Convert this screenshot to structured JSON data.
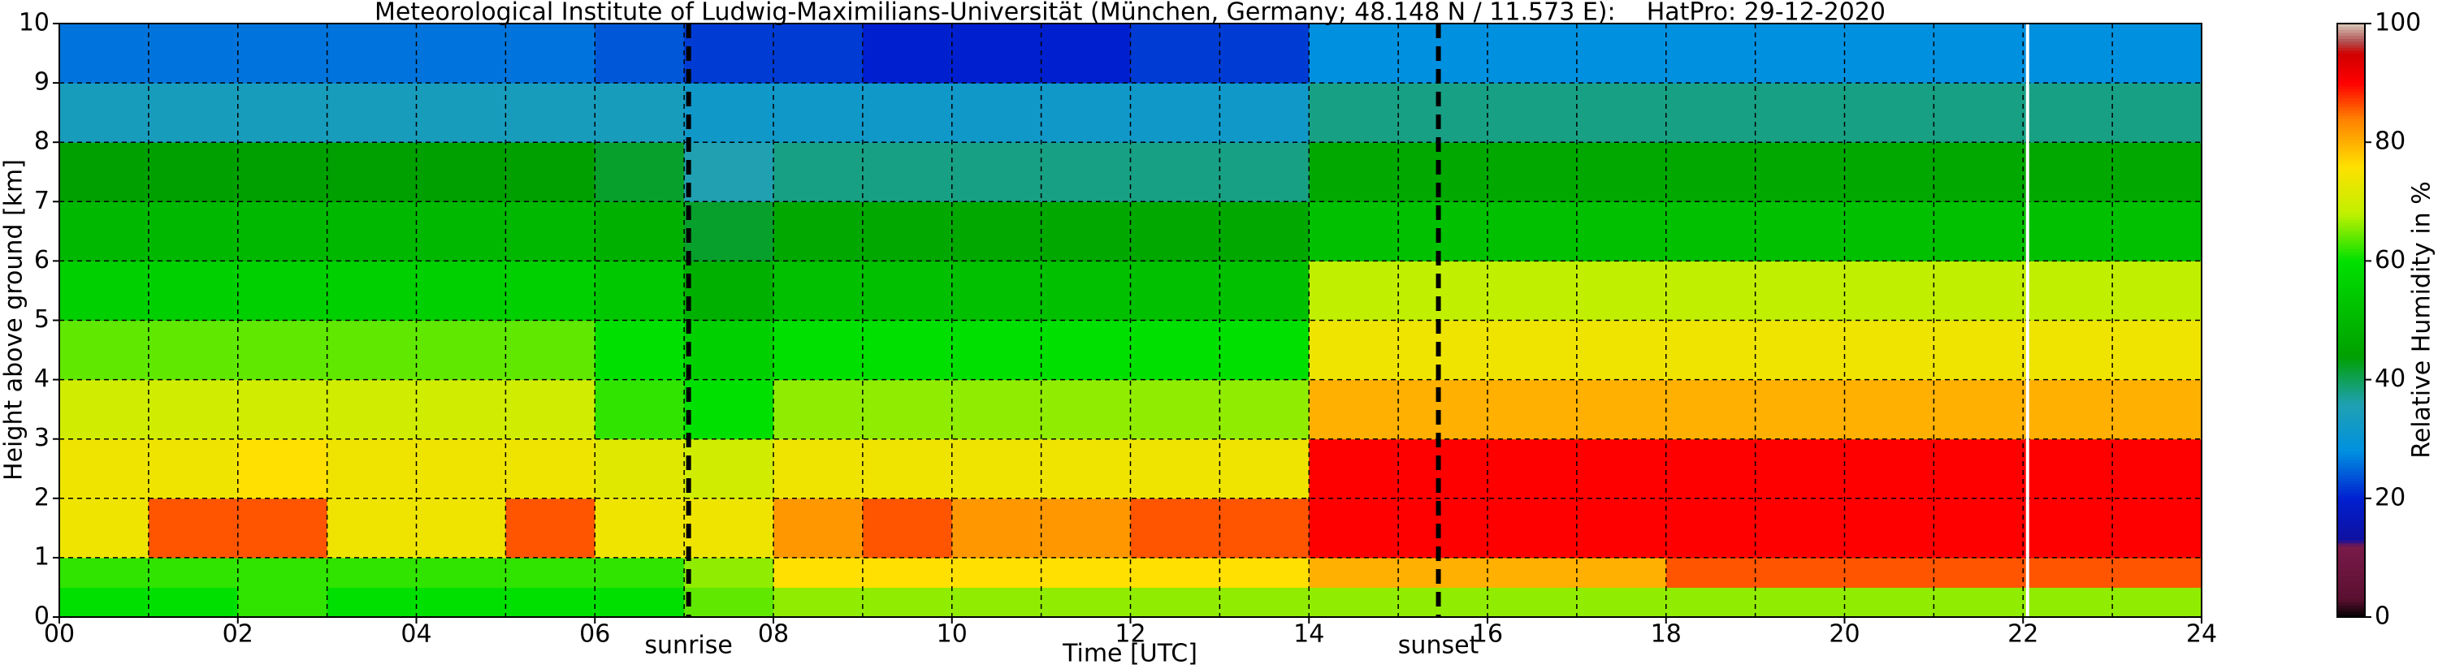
{
  "chart_data": {
    "type": "heatmap",
    "title": "Meteorological Institute of Ludwig-Maximilians-Universität (München, Germany; 48.148 N / 11.573 E):    HatPro: 29-12-2020",
    "xlabel": "Time [UTC]",
    "ylabel": "Height above ground [km]",
    "colorbar_label": "Relative Humidity in %",
    "x": [
      0,
      1,
      2,
      3,
      4,
      5,
      6,
      7,
      8,
      9,
      10,
      11,
      12,
      13,
      14,
      15,
      16,
      17,
      18,
      19,
      20,
      21,
      22,
      23,
      24
    ],
    "y": [
      0,
      0.5,
      1,
      2,
      3,
      4,
      5,
      6,
      7,
      8,
      9,
      10
    ],
    "z": [
      [
        60,
        60,
        62,
        60,
        60,
        60,
        60,
        64,
        66,
        66,
        66,
        66,
        66,
        66,
        66,
        66,
        66,
        66,
        66,
        66,
        66,
        66,
        66,
        66
      ],
      [
        62,
        62,
        62,
        62,
        62,
        62,
        62,
        66,
        76,
        76,
        76,
        76,
        76,
        76,
        80,
        80,
        80,
        80,
        86,
        86,
        86,
        86,
        86,
        86
      ],
      [
        74,
        86,
        86,
        74,
        74,
        86,
        74,
        74,
        82,
        86,
        82,
        82,
        86,
        86,
        90,
        90,
        90,
        90,
        90,
        90,
        90,
        90,
        90,
        90
      ],
      [
        74,
        74,
        76,
        74,
        74,
        74,
        72,
        70,
        74,
        74,
        74,
        74,
        74,
        74,
        90,
        90,
        90,
        90,
        90,
        90,
        90,
        90,
        90,
        90
      ],
      [
        70,
        70,
        70,
        70,
        70,
        70,
        62,
        60,
        66,
        66,
        66,
        66,
        66,
        66,
        80,
        80,
        80,
        80,
        80,
        80,
        80,
        80,
        80,
        80
      ],
      [
        64,
        64,
        64,
        64,
        64,
        64,
        60,
        56,
        60,
        60,
        60,
        60,
        60,
        60,
        74,
        74,
        74,
        74,
        74,
        74,
        74,
        74,
        74,
        74
      ],
      [
        56,
        56,
        56,
        56,
        56,
        56,
        54,
        48,
        52,
        52,
        52,
        52,
        52,
        52,
        68,
        68,
        68,
        68,
        68,
        68,
        68,
        68,
        68,
        68
      ],
      [
        50,
        50,
        50,
        50,
        50,
        50,
        48,
        42,
        46,
        46,
        46,
        46,
        46,
        46,
        52,
        52,
        52,
        52,
        52,
        52,
        52,
        52,
        52,
        52
      ],
      [
        44,
        44,
        44,
        44,
        44,
        44,
        42,
        36,
        38,
        38,
        38,
        38,
        38,
        38,
        46,
        46,
        46,
        46,
        46,
        46,
        46,
        46,
        46,
        46
      ],
      [
        34,
        34,
        34,
        34,
        34,
        34,
        34,
        32,
        32,
        32,
        32,
        32,
        32,
        32,
        38,
        38,
        38,
        38,
        38,
        38,
        38,
        38,
        38,
        38
      ],
      [
        26,
        26,
        26,
        26,
        26,
        26,
        24,
        22,
        22,
        20,
        20,
        20,
        22,
        22,
        28,
        28,
        28,
        28,
        28,
        28,
        28,
        28,
        28,
        28
      ]
    ],
    "xlim": [
      0,
      24
    ],
    "ylim": [
      0,
      10
    ],
    "clim": [
      0,
      100
    ],
    "xticks": [
      {
        "value": 0,
        "label": "00"
      },
      {
        "value": 2,
        "label": "02"
      },
      {
        "value": 4,
        "label": "04"
      },
      {
        "value": 6,
        "label": "06"
      },
      {
        "value": 8,
        "label": "08"
      },
      {
        "value": 10,
        "label": "10"
      },
      {
        "value": 12,
        "label": "12"
      },
      {
        "value": 14,
        "label": "14"
      },
      {
        "value": 16,
        "label": "16"
      },
      {
        "value": 18,
        "label": "18"
      },
      {
        "value": 20,
        "label": "20"
      },
      {
        "value": 22,
        "label": "22"
      },
      {
        "value": 24,
        "label": "24"
      }
    ],
    "xminorticks": [
      1,
      3,
      5,
      7,
      9,
      11,
      13,
      15,
      17,
      19,
      21,
      23
    ],
    "yticks": [
      0,
      1,
      2,
      3,
      4,
      5,
      6,
      7,
      8,
      9,
      10
    ],
    "cticks": [
      0,
      20,
      40,
      60,
      80,
      100
    ],
    "grid": true,
    "annotations": [
      {
        "x": 7.05,
        "label": "sunrise"
      },
      {
        "x": 15.45,
        "label": "sunset"
      }
    ],
    "gap_x": 22.05,
    "colorscale": [
      [
        0,
        "#000000"
      ],
      [
        3,
        "#5a1030"
      ],
      [
        12,
        "#7a1a4a"
      ],
      [
        13,
        "#1010a0"
      ],
      [
        20,
        "#0020d0"
      ],
      [
        28,
        "#0090e0"
      ],
      [
        36,
        "#20a0b0"
      ],
      [
        44,
        "#00a000"
      ],
      [
        52,
        "#00c000"
      ],
      [
        60,
        "#00e000"
      ],
      [
        68,
        "#c0f000"
      ],
      [
        76,
        "#ffe000"
      ],
      [
        84,
        "#ff8000"
      ],
      [
        90,
        "#ff0000"
      ],
      [
        95,
        "#d00000"
      ],
      [
        97,
        "#b05050"
      ],
      [
        100,
        "#d8c8b8"
      ]
    ]
  }
}
